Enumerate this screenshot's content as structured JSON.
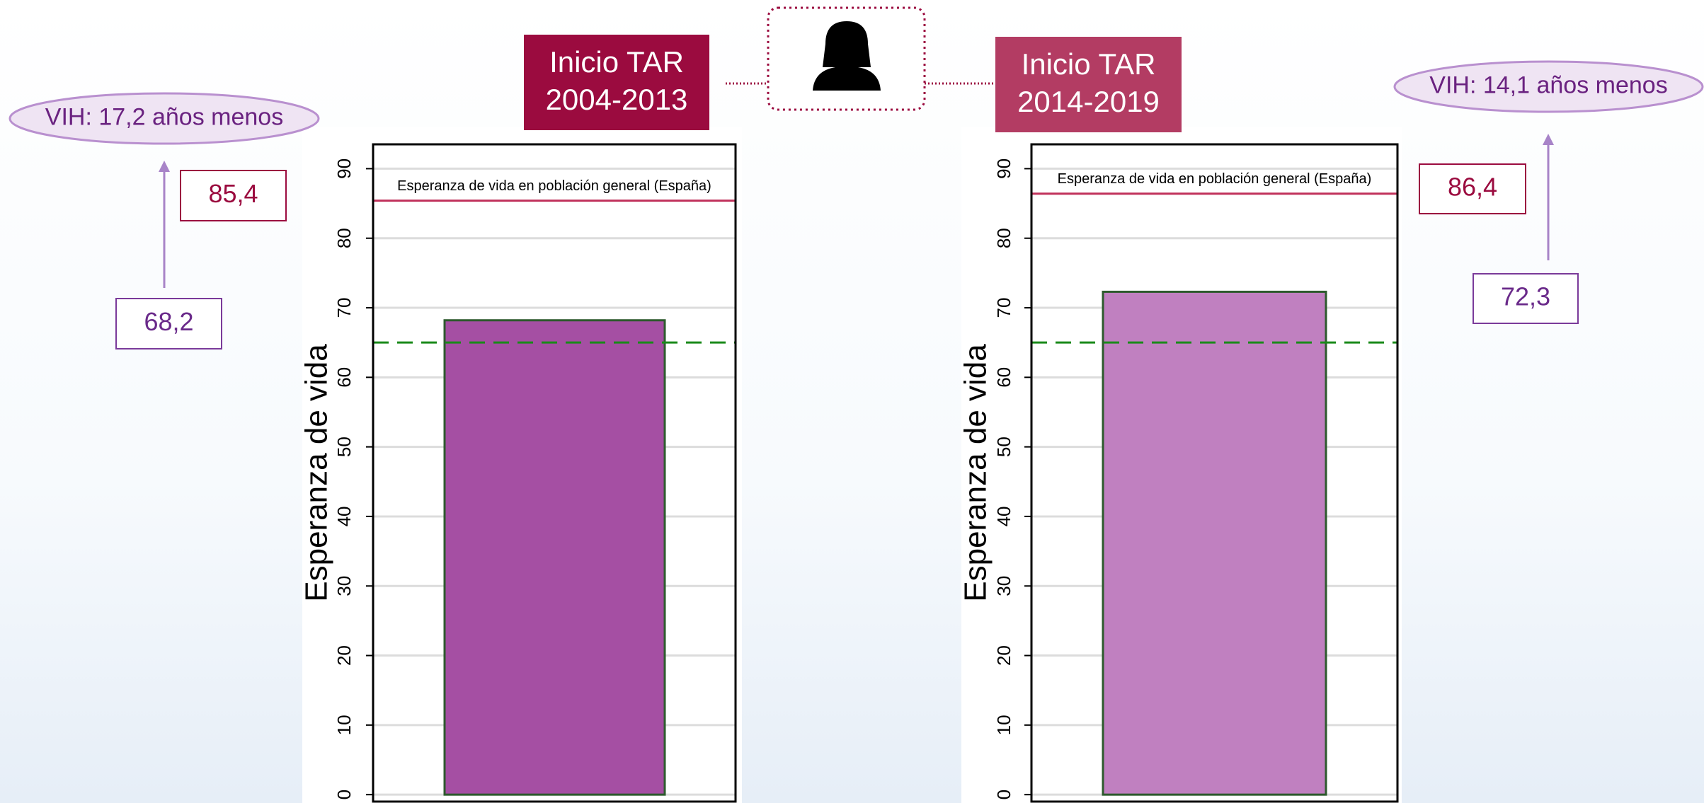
{
  "chart_data": [
    {
      "type": "bar",
      "header": [
        "Inicio TAR",
        "2004-2013"
      ],
      "header_color": "#9b0b3f",
      "annotation": "VIH: 17,2 años menos",
      "y_label": "Esperanza de vida",
      "values": [
        68.2
      ],
      "value_labels": [
        "68,2"
      ],
      "color": "#a54fa3",
      "reference": {
        "value": 85.4,
        "label": "85,4",
        "text": "Esperanza de vida en población general (España)",
        "color": "#c0305a"
      },
      "threshold": {
        "value": 65,
        "color": "#1a8a1a"
      },
      "ylim": [
        -1,
        93.5
      ],
      "yticks": [
        0,
        10,
        20,
        30,
        40,
        50,
        60,
        70,
        80,
        90
      ],
      "grid": true
    },
    {
      "type": "bar",
      "header": [
        "Inicio TAR",
        "2014-2019"
      ],
      "header_color": "#b33c63",
      "annotation": "VIH: 14,1 años menos",
      "y_label": "Esperanza de vida",
      "values": [
        72.3
      ],
      "value_labels": [
        "72,3"
      ],
      "color": "#c080c0",
      "reference": {
        "value": 86.4,
        "label": "86,4",
        "text": "Esperanza de vida en población general (España)",
        "color": "#c0305a"
      },
      "threshold": {
        "value": 65,
        "color": "#1a8a1a"
      },
      "ylim": [
        -1,
        93.5
      ],
      "yticks": [
        0,
        10,
        20,
        30,
        40,
        50,
        60,
        70,
        80,
        90
      ],
      "grid": true
    }
  ]
}
